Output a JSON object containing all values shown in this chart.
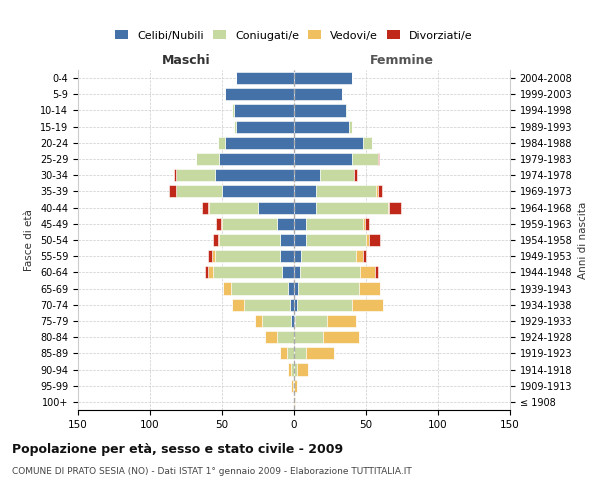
{
  "age_groups": [
    "100+",
    "95-99",
    "90-94",
    "85-89",
    "80-84",
    "75-79",
    "70-74",
    "65-69",
    "60-64",
    "55-59",
    "50-54",
    "45-49",
    "40-44",
    "35-39",
    "30-34",
    "25-29",
    "20-24",
    "15-19",
    "10-14",
    "5-9",
    "0-4"
  ],
  "birth_years": [
    "≤ 1908",
    "1909-1913",
    "1914-1918",
    "1919-1923",
    "1924-1928",
    "1929-1933",
    "1934-1938",
    "1939-1943",
    "1944-1948",
    "1949-1953",
    "1954-1958",
    "1959-1963",
    "1964-1968",
    "1969-1973",
    "1974-1978",
    "1979-1983",
    "1984-1988",
    "1989-1993",
    "1994-1998",
    "1999-2003",
    "2004-2008"
  ],
  "colors": {
    "celibi": "#4472a8",
    "coniugati": "#c5d9a0",
    "vedovi": "#f0c060",
    "divorziati": "#c0281a"
  },
  "maschi": {
    "celibi": [
      0,
      0,
      0,
      0,
      0,
      2,
      3,
      4,
      8,
      10,
      10,
      12,
      25,
      50,
      55,
      52,
      48,
      40,
      42,
      48,
      40
    ],
    "coniugati": [
      0,
      1,
      2,
      5,
      12,
      20,
      32,
      40,
      48,
      45,
      42,
      38,
      34,
      32,
      27,
      16,
      5,
      2,
      1,
      0,
      0
    ],
    "vedovi": [
      0,
      1,
      2,
      5,
      8,
      5,
      8,
      5,
      4,
      2,
      1,
      1,
      1,
      0,
      0,
      0,
      0,
      0,
      0,
      0,
      0
    ],
    "divorziati": [
      0,
      0,
      0,
      0,
      0,
      0,
      0,
      0,
      2,
      3,
      3,
      3,
      4,
      5,
      1,
      0,
      0,
      0,
      0,
      0,
      0
    ]
  },
  "femmine": {
    "celibi": [
      0,
      0,
      0,
      0,
      0,
      1,
      2,
      3,
      4,
      5,
      8,
      8,
      15,
      15,
      18,
      40,
      48,
      38,
      36,
      33,
      40
    ],
    "coniugati": [
      0,
      0,
      2,
      8,
      20,
      22,
      38,
      42,
      42,
      38,
      42,
      40,
      50,
      42,
      24,
      18,
      6,
      2,
      1,
      0,
      0
    ],
    "vedovi": [
      1,
      2,
      8,
      20,
      25,
      20,
      22,
      15,
      10,
      5,
      2,
      1,
      1,
      1,
      0,
      0,
      0,
      0,
      0,
      0,
      0
    ],
    "divorziati": [
      0,
      0,
      0,
      0,
      0,
      0,
      0,
      0,
      2,
      2,
      8,
      3,
      8,
      3,
      2,
      1,
      0,
      0,
      0,
      0,
      0
    ]
  },
  "xlim": 150,
  "title": "Popolazione per età, sesso e stato civile - 2009",
  "subtitle": "COMUNE DI PRATO SESIA (NO) - Dati ISTAT 1° gennaio 2009 - Elaborazione TUTTITALIA.IT",
  "ylabel_left": "Fasce di età",
  "ylabel_right": "Anni di nascita",
  "maschi_label": "Maschi",
  "femmine_label": "Femmine",
  "legend": [
    "Celibi/Nubili",
    "Coniugati/e",
    "Vedovi/e",
    "Divorziati/e"
  ],
  "legend_colors": [
    "#4472a8",
    "#c5d9a0",
    "#f0c060",
    "#c0281a"
  ]
}
